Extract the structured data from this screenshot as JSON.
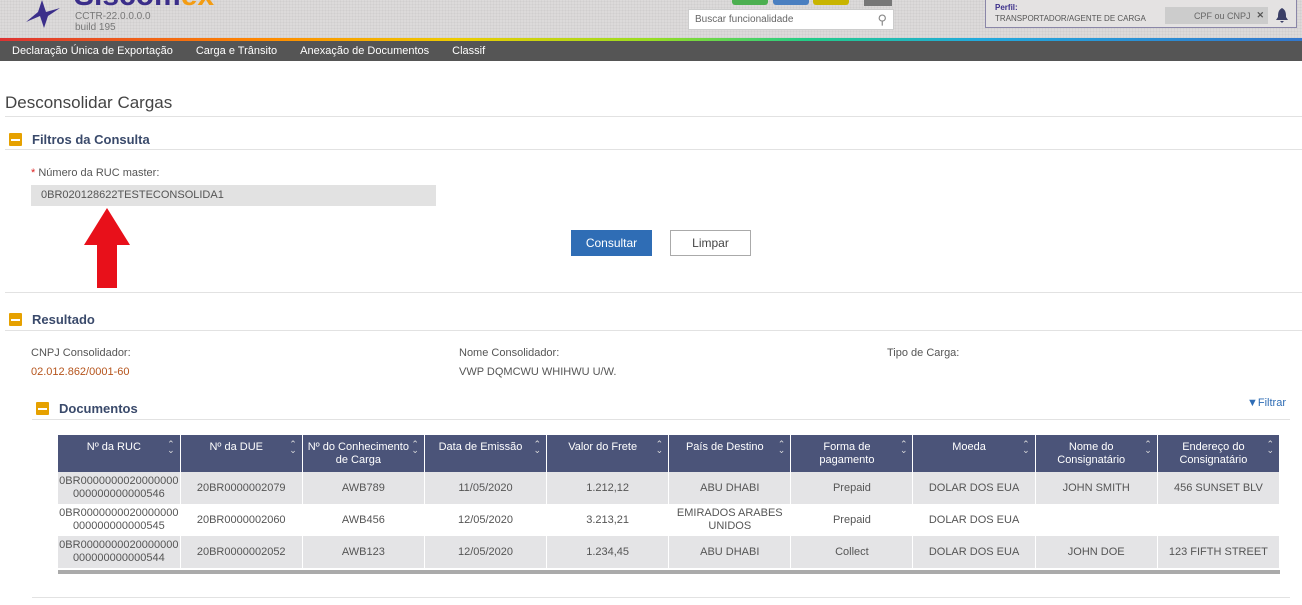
{
  "header": {
    "logo_main": "Siscom",
    "logo_accent": "ex",
    "version": "CCTR-22.0.0.0.0",
    "build": "build 195",
    "search_placeholder": "Buscar funcionalidade",
    "profile_label": "Perfil:",
    "profile_value": "TRANSPORTADOR/AGENTE DE CARGA",
    "cpf_placeholder": "CPF ou CNPJ"
  },
  "nav": [
    "Declaração Única de Exportação",
    "Carga e Trânsito",
    "Anexação de Documentos",
    "Classif"
  ],
  "page_title": "Desconsolidar Cargas",
  "filters": {
    "title": "Filtros da Consulta",
    "required_mark": "*",
    "ruc_label": "Número da RUC master:",
    "ruc_value": "0BR020128622TESTECONSOLIDA1",
    "consultar": "Consultar",
    "limpar": "Limpar"
  },
  "result": {
    "title": "Resultado",
    "cnpj_label": "CNPJ Consolidador:",
    "cnpj_value": "02.012.862/0001-60",
    "nome_label": "Nome Consolidador:",
    "nome_value": "VWP DQMCWU WHIHWU U/W.",
    "tipo_label": "Tipo de Carga:",
    "tipo_value": ""
  },
  "documents": {
    "title": "Documentos",
    "filter": "Filtrar",
    "columns": [
      "Nº da RUC",
      "Nº da DUE",
      "Nº do Conhecimento de Carga",
      "Data de Emissão",
      "Valor do Frete",
      "País de Destino",
      "Forma de pagamento",
      "Moeda",
      "Nome do Consignatário",
      "Endereço do Consignatário"
    ],
    "rows": [
      [
        "0BR0000000020000000000000000000546",
        "20BR0000002079",
        "AWB789",
        "11/05/2020",
        "1.212,12",
        "ABU DHABI",
        "Prepaid",
        "DOLAR DOS EUA",
        "JOHN SMITH",
        "456 SUNSET BLV"
      ],
      [
        "0BR0000000020000000000000000000545",
        "20BR0000002060",
        "AWB456",
        "12/05/2020",
        "3.213,21",
        "EMIRADOS ARABES UNIDOS",
        "Prepaid",
        "DOLAR DOS EUA",
        "",
        ""
      ],
      [
        "0BR0000000020000000000000000000544",
        "20BR0000002052",
        "AWB123",
        "12/05/2020",
        "1.234,45",
        "ABU DHABI",
        "Collect",
        "DOLAR DOS EUA",
        "JOHN DOE",
        "123 FIFTH STREET"
      ]
    ]
  },
  "colors": {
    "accent": "#e6a100",
    "table_header": "#4b5479",
    "primary_button": "#2f6db5",
    "arrow": "#e8101a"
  }
}
